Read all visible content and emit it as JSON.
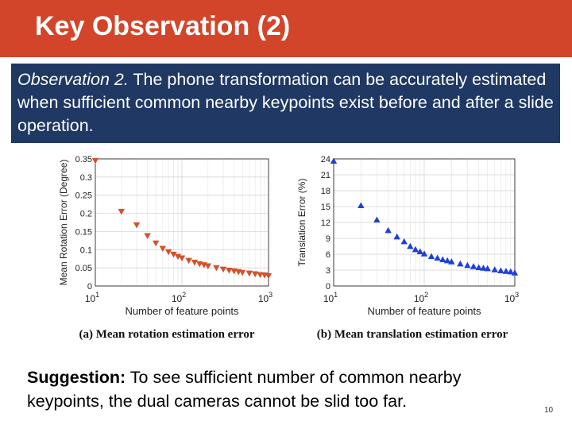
{
  "header": {
    "title": "Key Observation (2)"
  },
  "observation": {
    "lead": "Observation 2.",
    "text": " The phone transformation can be accurately estimated when sufficient common nearby keypoints exist before and after a slide operation."
  },
  "suggestion": {
    "lead": "Suggestion:",
    "text": " To see sufficient number of common nearby keypoints, the dual cameras cannot be slid too far."
  },
  "page_number": "10",
  "colors": {
    "title_bar": "#d3452a",
    "observation_box": "#1f3864",
    "series_a": "#d2522c",
    "series_b": "#1f3fd8"
  },
  "chart_data": [
    {
      "type": "scatter",
      "caption": "(a) Mean rotation estimation error",
      "xlabel": "Number of feature points",
      "ylabel": "Mean Rotation Error (Degree)",
      "xscale": "log",
      "xlim": [
        10,
        1000
      ],
      "ylim": [
        0,
        0.35
      ],
      "yticks": [
        "0",
        "0.05",
        "0.1",
        "0.15",
        "0.2",
        "0.25",
        "0.3",
        "0.35"
      ],
      "xtick_base": "10",
      "xtick_exponents": [
        "1",
        "2",
        "3"
      ],
      "marker": "triangle-down",
      "grid": true,
      "x": [
        10,
        20,
        30,
        40,
        50,
        60,
        70,
        80,
        90,
        100,
        120,
        140,
        160,
        180,
        200,
        250,
        300,
        350,
        400,
        450,
        500,
        600,
        700,
        800,
        900,
        1000
      ],
      "y": [
        0.345,
        0.205,
        0.168,
        0.138,
        0.118,
        0.103,
        0.094,
        0.087,
        0.081,
        0.077,
        0.07,
        0.065,
        0.061,
        0.058,
        0.055,
        0.05,
        0.046,
        0.043,
        0.041,
        0.039,
        0.037,
        0.035,
        0.033,
        0.031,
        0.03,
        0.028
      ]
    },
    {
      "type": "scatter",
      "caption": "(b) Mean translation estimation error",
      "xlabel": "Number of feature points",
      "ylabel": "Translation Error (%)",
      "xscale": "log",
      "xlim": [
        10,
        1000
      ],
      "ylim": [
        0,
        24
      ],
      "yticks": [
        "0",
        "3",
        "6",
        "9",
        "12",
        "15",
        "18",
        "21",
        "24"
      ],
      "xtick_base": "10",
      "xtick_exponents": [
        "1",
        "2",
        "3"
      ],
      "marker": "triangle-up",
      "grid": true,
      "x": [
        10,
        20,
        30,
        40,
        50,
        60,
        70,
        80,
        90,
        100,
        120,
        140,
        160,
        180,
        200,
        250,
        300,
        350,
        400,
        450,
        500,
        600,
        700,
        800,
        900,
        1000
      ],
      "y": [
        23.6,
        15.2,
        12.5,
        10.5,
        9.3,
        8.4,
        7.5,
        6.9,
        6.5,
        6.1,
        5.6,
        5.3,
        5.0,
        4.8,
        4.6,
        4.2,
        3.9,
        3.7,
        3.5,
        3.4,
        3.3,
        3.1,
        2.9,
        2.8,
        2.7,
        2.5
      ]
    }
  ]
}
